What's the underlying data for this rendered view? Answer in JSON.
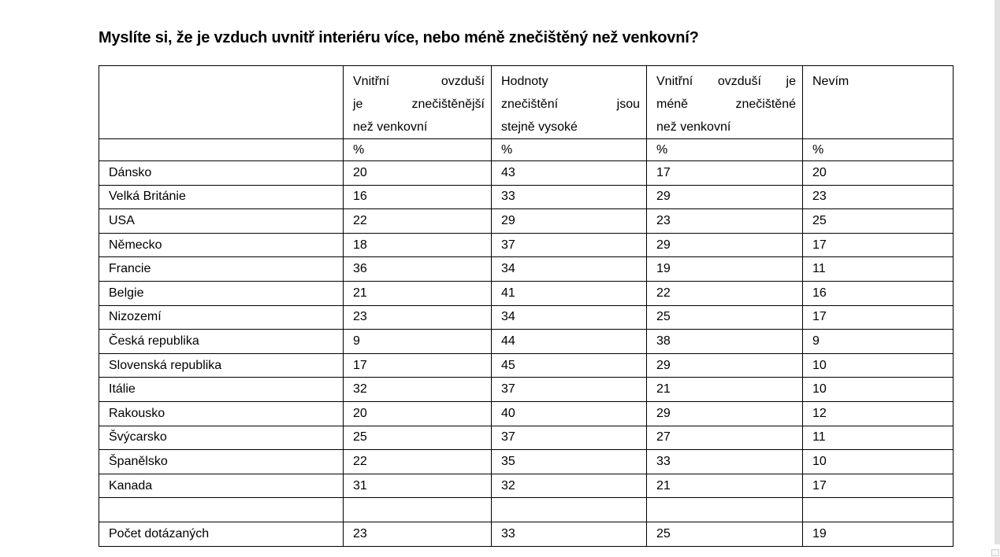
{
  "page": {
    "title": "Myslíte si, že je vzduch uvnitř interiéru více, nebo méně znečištěný než venkovní?"
  },
  "colors": {
    "text": "#000000",
    "table_border": "#000000",
    "scrollbar_track": "#e2e2e2",
    "background": "#ffffff"
  },
  "table": {
    "columns": [
      {
        "header": "",
        "header_lines": []
      },
      {
        "header": "Vnitřní ovzduší je znečištěnější než venkovní",
        "header_lines": [
          "Vnitřní ovzduší",
          "je znečištěnější",
          "než venkovní"
        ]
      },
      {
        "header": "Hodnoty znečištění jsou stejně vysoké",
        "header_lines": [
          "Hodnoty",
          "znečištění jsou",
          "stejně vysoké"
        ]
      },
      {
        "header": "Vnitřní ovzduší je méně znečištěné než venkovní",
        "header_lines": [
          "Vnitřní ovzduší je",
          "méně znečištěné",
          "než venkovní"
        ]
      },
      {
        "header": "Nevím",
        "header_lines": [
          "Nevím"
        ]
      }
    ],
    "units": [
      "",
      "%",
      "%",
      "%",
      "%"
    ],
    "rows": [
      {
        "label": "Dánsko",
        "values": [
          "20",
          "43",
          "17",
          "20"
        ]
      },
      {
        "label": "Velká Británie",
        "values": [
          "16",
          "33",
          "29",
          "23"
        ]
      },
      {
        "label": "USA",
        "values": [
          "22",
          "29",
          "23",
          "25"
        ]
      },
      {
        "label": "Německo",
        "values": [
          "18",
          "37",
          "29",
          "17"
        ]
      },
      {
        "label": "Francie",
        "values": [
          "36",
          "34",
          "19",
          "11"
        ]
      },
      {
        "label": "Belgie",
        "values": [
          "21",
          "41",
          "22",
          "16"
        ]
      },
      {
        "label": "Nizozemí",
        "values": [
          "23",
          "34",
          "25",
          "17"
        ]
      },
      {
        "label": "Česká republika",
        "values": [
          "9",
          "44",
          "38",
          "9"
        ]
      },
      {
        "label": "Slovenská republika",
        "values": [
          "17",
          "45",
          "29",
          "10"
        ]
      },
      {
        "label": "Itálie",
        "values": [
          "32",
          "37",
          "21",
          "10"
        ]
      },
      {
        "label": "Rakousko",
        "values": [
          "20",
          "40",
          "29",
          "12"
        ]
      },
      {
        "label": "Švýcarsko",
        "values": [
          "25",
          "37",
          "27",
          "11"
        ]
      },
      {
        "label": "Španělsko",
        "values": [
          "22",
          "35",
          "33",
          "10"
        ]
      },
      {
        "label": "Kanada",
        "values": [
          "31",
          "32",
          "21",
          "17"
        ]
      },
      {
        "label": "",
        "values": [
          "",
          "",
          "",
          ""
        ]
      },
      {
        "label": "Počet dotázaných",
        "values": [
          "23",
          "33",
          "25",
          "19"
        ]
      }
    ]
  }
}
